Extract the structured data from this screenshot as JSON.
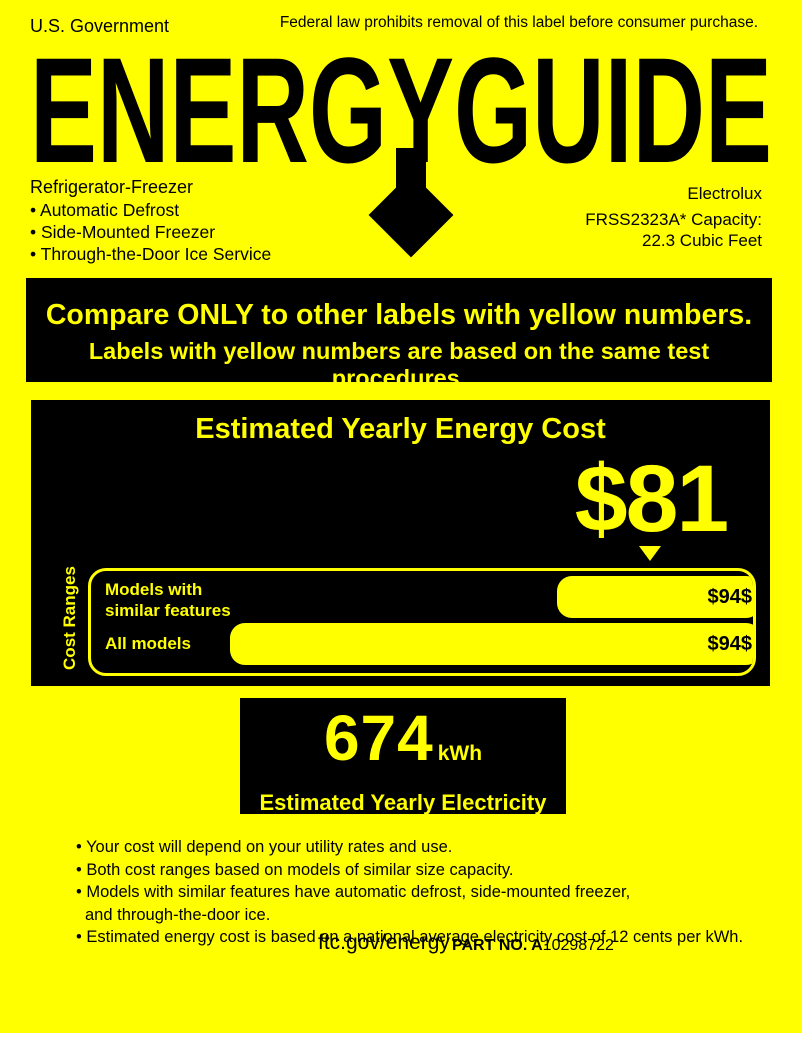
{
  "colors": {
    "background": "#ffff00",
    "box": "#000000",
    "accent_text": "#ffff00"
  },
  "header": {
    "government": "U.S. Government",
    "federal_notice": "Federal law prohibits removal of this label before consumer purchase."
  },
  "logo": {
    "title": "ENERGYGUIDE",
    "arrow": "down-arrow"
  },
  "appliance": {
    "type": "Refrigerator-Freezer",
    "features": [
      "• Automatic Defrost",
      "• Side-Mounted Freezer",
      "• Through-the-Door Ice Service"
    ],
    "brand": "Electrolux",
    "model_capacity_line1": "FRSS2323A* Capacity:",
    "model_capacity_line2": "22.3 Cubic Feet"
  },
  "compare_banner": {
    "line1": "Compare ONLY to other labels with yellow numbers.",
    "line2": "Labels with yellow numbers are based on the same test procedures."
  },
  "cost_section": {
    "title": "Estimated Yearly Energy Cost",
    "cost": "$81",
    "axis_label": "Cost Ranges",
    "rows": [
      {
        "label_line1": "Models with",
        "label_line2": "similar features",
        "value": "$94$"
      },
      {
        "label_line1": "All models",
        "label_line2": "",
        "value": "$94$"
      }
    ]
  },
  "usage_section": {
    "value": "674",
    "unit": "kWh",
    "caption": "Estimated Yearly Electricity Use"
  },
  "footnotes": [
    "• Your cost will depend on your utility rates and use.",
    "• Both cost ranges based on models of similar size capacity.",
    "• Models with similar features have automatic defrost, side-mounted freezer,",
    "and through-the-door ice.",
    "• Estimated energy cost is based on a national average electricity cost of 12 cents per kWh."
  ],
  "footer": {
    "url": "ftc.gov/energy",
    "part_label": "PART NO. A",
    "part_number": "10298722"
  }
}
